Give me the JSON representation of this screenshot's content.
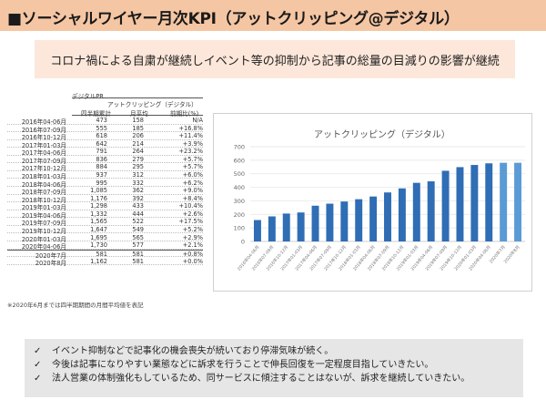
{
  "header": {
    "title": "■ソーシャルワイヤー月次KPI（アットクリッピング@デジタル）"
  },
  "subtitle": "コロナ禍による自粛が継続しイベント等の抑制から記事の総量の目減りの影響が継続",
  "table": {
    "group_label": "デジタルPR",
    "service_label": "アットクリッピング（デジタル）",
    "columns": [
      "四半期累計",
      "月平均",
      "前期比(%)"
    ],
    "rows": [
      {
        "period": "2016年04-06月",
        "total": "473",
        "avg": "158",
        "pct": "N/A"
      },
      {
        "period": "2016年07-09月",
        "total": "555",
        "avg": "185",
        "pct": "+16.8%"
      },
      {
        "period": "2016年10-12月",
        "total": "618",
        "avg": "206",
        "pct": "+11.4%"
      },
      {
        "period": "2017年01-03月",
        "total": "642",
        "avg": "214",
        "pct": "+3.9%"
      },
      {
        "period": "2017年04-06月",
        "total": "791",
        "avg": "264",
        "pct": "+23.2%"
      },
      {
        "period": "2017年07-09月",
        "total": "836",
        "avg": "279",
        "pct": "+5.7%"
      },
      {
        "period": "2017年10-12月",
        "total": "884",
        "avg": "295",
        "pct": "+5.7%"
      },
      {
        "period": "2018年01-03月",
        "total": "937",
        "avg": "312",
        "pct": "+6.0%"
      },
      {
        "period": "2018年04-06月",
        "total": "995",
        "avg": "332",
        "pct": "+6.2%"
      },
      {
        "period": "2018年07-09月",
        "total": "1,085",
        "avg": "362",
        "pct": "+9.0%"
      },
      {
        "period": "2018年10-12月",
        "total": "1,176",
        "avg": "392",
        "pct": "+8.4%"
      },
      {
        "period": "2019年01-03月",
        "total": "1,298",
        "avg": "433",
        "pct": "+10.4%"
      },
      {
        "period": "2019年04-06月",
        "total": "1,332",
        "avg": "444",
        "pct": "+2.6%"
      },
      {
        "period": "2019年07-09月",
        "total": "1,565",
        "avg": "522",
        "pct": "+17.5%"
      },
      {
        "period": "2019年10-12月",
        "total": "1,647",
        "avg": "549",
        "pct": "+5.2%"
      },
      {
        "period": "2020年01-03月",
        "total": "1,695",
        "avg": "565",
        "pct": "+2.9%"
      },
      {
        "period": "2020年04-06月",
        "total": "1,730",
        "avg": "577",
        "pct": "+2.1%"
      }
    ],
    "monthly_rows": [
      {
        "period": "2020年7月",
        "total": "581",
        "avg": "581",
        "pct": "+0.8%"
      },
      {
        "period": "2020年8月",
        "total": "1,162",
        "avg": "581",
        "pct": "+0.0%"
      }
    ]
  },
  "note": "※2020年6月までは四半期期間の月間平均値を表記",
  "chart_data": {
    "type": "bar",
    "title": "アットクリッピング（デジタル）",
    "categories": [
      "2016年04-06月",
      "2016年07-09月",
      "2016年10-12月",
      "2017年01-03月",
      "2017年04-06月",
      "2017年07-09月",
      "2017年10-12月",
      "2018年01-03月",
      "2018年04-06月",
      "2018年07-09月",
      "2018年10-12月",
      "2019年01-03月",
      "2019年04-06月",
      "2019年07-09月",
      "2019年10-12月",
      "2020年01-03月",
      "2020年04-06月",
      "2020年7月",
      "2020年8月"
    ],
    "values": [
      158,
      185,
      206,
      214,
      264,
      279,
      295,
      312,
      332,
      362,
      392,
      433,
      444,
      522,
      549,
      565,
      577,
      581,
      581
    ],
    "ylim": [
      0,
      700
    ],
    "yticks": [
      "0",
      "100",
      "200",
      "300",
      "400",
      "500",
      "600",
      "700"
    ],
    "grid": true,
    "colors": {
      "main": "#2f6db5",
      "monthly": "#5b9bd5"
    }
  },
  "bullets": [
    "イベント抑制などで記事化の機会喪失が続いており停滞気味が続く。",
    "今後は記事になりやすい業態などに訴求を行うことで伸長回復を一定程度目指していきたい。",
    "法人営業の体制強化もしているため、同サービスに傾注することはないが、訴求を継続していきたい。"
  ],
  "check_glyph": "✓"
}
